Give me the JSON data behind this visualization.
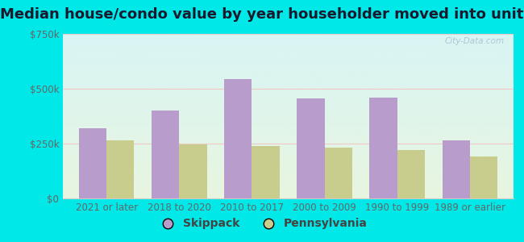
{
  "title": "Median house/condo value by year householder moved into unit",
  "categories": [
    "2021 or later",
    "2018 to 2020",
    "2010 to 2017",
    "2000 to 2009",
    "1990 to 1999",
    "1989 or earlier"
  ],
  "skippack_values": [
    320000,
    400000,
    545000,
    455000,
    460000,
    265000
  ],
  "pennsylvania_values": [
    265000,
    245000,
    240000,
    232000,
    220000,
    192000
  ],
  "skippack_color": "#b89ccc",
  "pennsylvania_color": "#c8cc8c",
  "bar_width": 0.38,
  "ylim": [
    0,
    750000
  ],
  "yticks": [
    0,
    250000,
    500000,
    750000
  ],
  "ytick_labels": [
    "$0",
    "$250k",
    "$500k",
    "$750k"
  ],
  "background_top": "#d8f5f5",
  "background_bottom": "#e8f5e0",
  "outer_bg": "#00e8e8",
  "title_fontsize": 13,
  "axis_fontsize": 8.5,
  "legend_fontsize": 10,
  "watermark_text": "City-Data.com",
  "grid_color": "#e8e8e8",
  "tick_color": "#666666",
  "spine_color": "#cccccc"
}
